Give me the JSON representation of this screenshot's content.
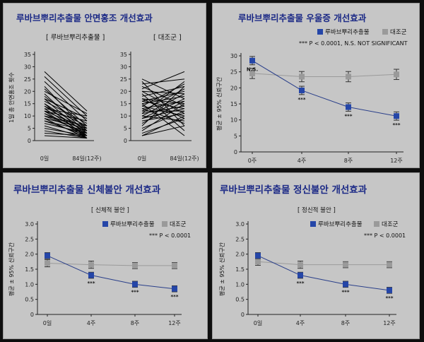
{
  "panels": [
    {
      "title": "루바브뿌리추출물 안면홍조 개선효과",
      "ylabel": "1일 총 안면홍조 횟수",
      "left_label": "[ 루바브뿌리추출물 ]",
      "right_label": "[ 대조군 ]",
      "xticks": [
        "0일",
        "84일(12주)"
      ],
      "yticks": [
        "0",
        "5",
        "10",
        "15",
        "20",
        "25",
        "30",
        "35"
      ]
    },
    {
      "title": "루바브뿌리추출물 우울증 개선효과",
      "legend": [
        "루바브뿌리추출물",
        "대조군"
      ],
      "sig_note": "*** P < 0.0001, N.S. NOT SIGNIFICANT",
      "ylabel": "평균 ± 95% 신뢰구간",
      "xticks": [
        "0주",
        "4주",
        "8주",
        "12주"
      ],
      "yticks": [
        "0",
        "5",
        "10",
        "15",
        "20",
        "25",
        "30"
      ],
      "marks": [
        "N.S.",
        "***",
        "***",
        "***"
      ]
    },
    {
      "title": "루바브뿌리추출물 신체불안 개선효과",
      "subtitle": "[ 신체적 불안 ]",
      "legend": [
        "루바브뿌리추출물",
        "대조군"
      ],
      "sig_note": "*** P < 0.0001",
      "ylabel": "평균 ± 95% 신뢰구간",
      "xticks": [
        "0일",
        "4주",
        "8주",
        "12주"
      ],
      "yticks": [
        "0",
        "0.5",
        "1.0",
        "1.5",
        "2.0",
        "2.5",
        "3.0"
      ],
      "marks": [
        "***",
        "***",
        "***"
      ]
    },
    {
      "title": "루바브뿌리추출물 정신불안 개선효과",
      "subtitle": "[ 정신적 불안 ]",
      "legend": [
        "루바브뿌리추출물",
        "대조군"
      ],
      "sig_note": "*** P < 0.0001",
      "ylabel": "평균 ± 95% 신뢰구간",
      "xticks": [
        "0일",
        "4주",
        "8주",
        "12주"
      ],
      "yticks": [
        "0",
        "0.5",
        "1.0",
        "1.5",
        "2.0",
        "2.5",
        "3.0"
      ],
      "marks": [
        "***",
        "***",
        "***"
      ]
    }
  ],
  "colors": {
    "treatment": "#2546a8",
    "control": "#9a9a9a",
    "panel_bg": "#c6c6c6",
    "title": "#1c2a86"
  },
  "chart_data": [
    {
      "type": "line",
      "title": "루바브뿌리추출물 안면홍조 개선효과",
      "ylabel": "1일 총 안면홍조 횟수",
      "ylim": [
        0,
        35
      ],
      "x": [
        "0일",
        "84일(12주)"
      ],
      "series": [
        {
          "name": "루바브뿌리추출물",
          "pairs": [
            [
              28,
              12
            ],
            [
              26,
              10
            ],
            [
              24,
              8
            ],
            [
              22,
              4
            ],
            [
              21,
              6
            ],
            [
              20,
              11
            ],
            [
              19,
              3
            ],
            [
              18,
              5
            ],
            [
              17,
              2
            ],
            [
              17,
              9
            ],
            [
              16,
              7
            ],
            [
              15,
              4
            ],
            [
              15,
              1
            ],
            [
              14,
              6
            ],
            [
              14,
              3
            ],
            [
              13,
              2
            ],
            [
              13,
              10
            ],
            [
              12,
              5
            ],
            [
              12,
              1
            ],
            [
              12,
              8
            ],
            [
              11,
              4
            ],
            [
              11,
              2
            ],
            [
              10,
              6
            ],
            [
              10,
              3
            ],
            [
              9,
              1
            ],
            [
              9,
              5
            ],
            [
              8,
              2
            ],
            [
              8,
              4
            ],
            [
              7,
              3
            ],
            [
              6,
              1
            ],
            [
              5,
              2
            ],
            [
              4,
              1
            ],
            [
              3,
              2
            ],
            [
              2,
              1
            ]
          ]
        },
        {
          "name": "대조군",
          "pairs": [
            [
              25,
              17
            ],
            [
              24,
              6
            ],
            [
              23,
              25
            ],
            [
              22,
              14
            ],
            [
              21,
              28
            ],
            [
              20,
              11
            ],
            [
              20,
              19
            ],
            [
              19,
              4
            ],
            [
              18,
              22
            ],
            [
              17,
              15
            ],
            [
              17,
              9
            ],
            [
              16,
              20
            ],
            [
              16,
              13
            ],
            [
              15,
              2
            ],
            [
              15,
              18
            ],
            [
              14,
              23
            ],
            [
              14,
              10
            ],
            [
              13,
              16
            ],
            [
              13,
              7
            ],
            [
              12,
              12
            ],
            [
              12,
              21
            ],
            [
              11,
              24
            ],
            [
              11,
              14
            ],
            [
              10,
              19
            ],
            [
              10,
              8
            ],
            [
              9,
              13
            ],
            [
              9,
              17
            ],
            [
              8,
              11
            ],
            [
              7,
              16
            ],
            [
              6,
              22
            ],
            [
              5,
              12
            ],
            [
              4,
              15
            ],
            [
              3,
              9
            ],
            [
              2,
              10
            ],
            [
              2,
              6
            ]
          ]
        }
      ]
    },
    {
      "type": "line",
      "title": "루바브뿌리추출물 우울증 개선효과",
      "ylabel": "평균 ± 95% 신뢰구간",
      "ylim": [
        0,
        30
      ],
      "x": [
        "0주",
        "4주",
        "8주",
        "12주"
      ],
      "series": [
        {
          "name": "루바브뿌리추출물",
          "values": [
            28.5,
            19.2,
            14.0,
            11.2
          ],
          "err": [
            1.3,
            1.3,
            1.3,
            1.3
          ]
        },
        {
          "name": "대조군",
          "values": [
            24.5,
            23.5,
            23.5,
            24.2
          ],
          "err": [
            1.6,
            1.6,
            1.6,
            1.6
          ]
        }
      ]
    },
    {
      "type": "line",
      "title": "루바브뿌리추출물 신체불안 개선효과",
      "subtitle": "[ 신체적 불안 ]",
      "ylabel": "평균 ± 95% 신뢰구간",
      "ylim": [
        0,
        3.0
      ],
      "x": [
        "0일",
        "4주",
        "8주",
        "12주"
      ],
      "series": [
        {
          "name": "루바브뿌리추출물",
          "values": [
            1.95,
            1.3,
            1.0,
            0.85
          ],
          "err": [
            0.1,
            0.1,
            0.1,
            0.1
          ]
        },
        {
          "name": "대조군",
          "values": [
            1.7,
            1.65,
            1.62,
            1.62
          ],
          "err": [
            0.12,
            0.12,
            0.1,
            0.1
          ]
        }
      ]
    },
    {
      "type": "line",
      "title": "루바브뿌리추출물 정신불안 개선효과",
      "subtitle": "[ 정신적 불안 ]",
      "ylabel": "평균 ± 95% 신뢰구간",
      "ylim": [
        0,
        3.0
      ],
      "x": [
        "0일",
        "4주",
        "8주",
        "12주"
      ],
      "series": [
        {
          "name": "루바브뿌리추출물",
          "values": [
            1.95,
            1.3,
            1.0,
            0.8
          ],
          "err": [
            0.1,
            0.1,
            0.1,
            0.1
          ]
        },
        {
          "name": "대조군",
          "values": [
            1.75,
            1.65,
            1.65,
            1.65
          ],
          "err": [
            0.12,
            0.12,
            0.1,
            0.1
          ]
        }
      ]
    }
  ]
}
